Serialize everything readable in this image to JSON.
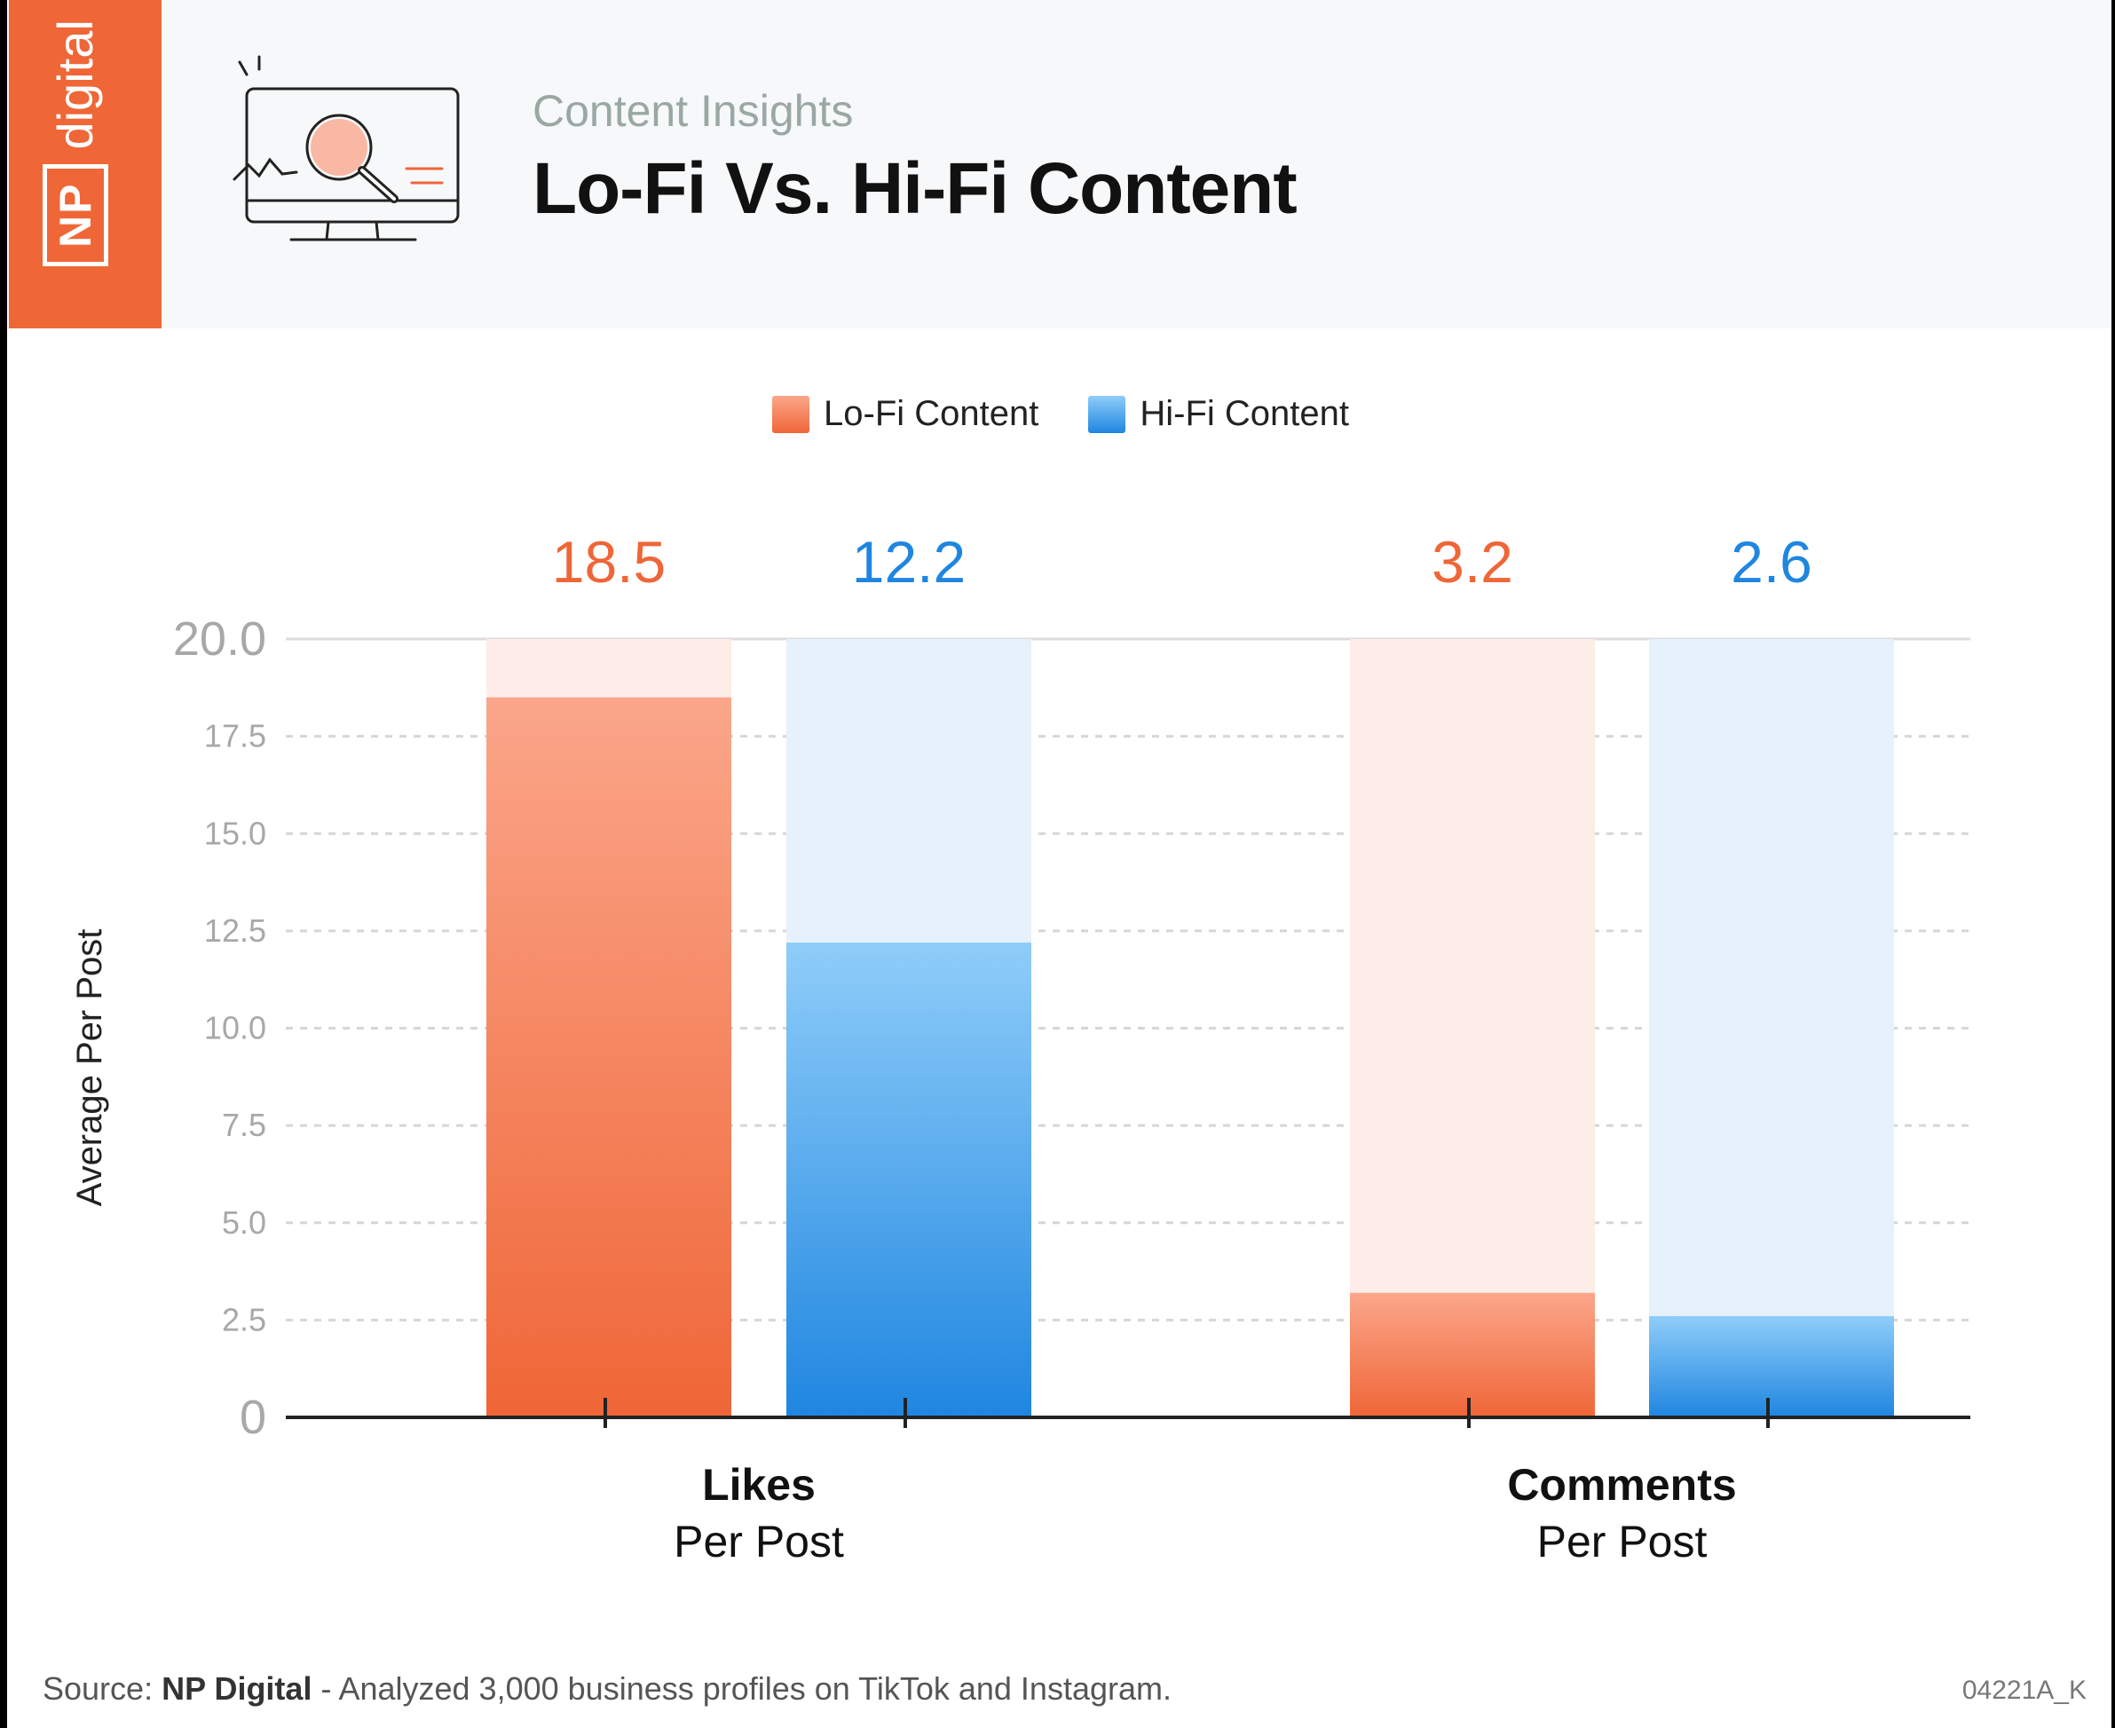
{
  "header": {
    "brand_np": "NP",
    "brand_digital": "digital",
    "subtitle": "Content Insights",
    "title": "Lo-Fi Vs. Hi-Fi Content",
    "icon": "monitor-magnifier-icon"
  },
  "colors": {
    "lofi": "#ef6637",
    "hifi": "#1f86e0",
    "lofi_track": "#fdece7",
    "hifi_track": "#e6f1fb",
    "brand": "#ef6637"
  },
  "chart_data": {
    "type": "bar",
    "title": "",
    "ylabel": "Average Per Post",
    "xlabel": "",
    "ylim": [
      0,
      20
    ],
    "yticks": [
      "0",
      "2.5",
      "5.0",
      "7.5",
      "10.0",
      "12.5",
      "15.0",
      "17.5",
      "20.0"
    ],
    "categories": [
      {
        "bold": "Likes",
        "line2": "Per Post"
      },
      {
        "bold": "Comments",
        "line2": "Per Post"
      }
    ],
    "series": [
      {
        "name": "Lo-Fi Content",
        "values": [
          18.5,
          3.2
        ],
        "labels": [
          "18.5",
          "3.2"
        ]
      },
      {
        "name": "Hi-Fi Content",
        "values": [
          12.2,
          2.6
        ],
        "labels": [
          "12.2",
          "2.6"
        ]
      }
    ],
    "legend": "top-center",
    "grid": true
  },
  "footer": {
    "source_prefix": "Source: ",
    "source_name": "NP Digital",
    "source_rest": " - Analyzed 3,000 business profiles on TikTok and Instagram.",
    "code": "04221A_K"
  }
}
